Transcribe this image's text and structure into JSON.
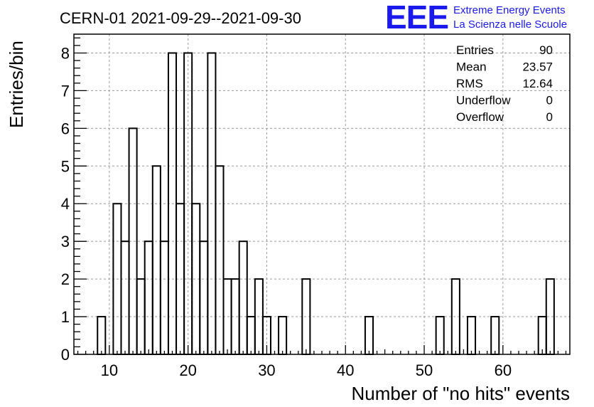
{
  "chart_data": {
    "type": "bar",
    "title": "CERN-01 2021-09-29--2021-09-30",
    "xlabel": "Number of \"no hits\" events",
    "ylabel": "Entries/bin",
    "xlim": [
      5.5,
      68.5
    ],
    "ylim": [
      0,
      8.5
    ],
    "xticks": [
      10,
      20,
      30,
      40,
      50,
      60
    ],
    "yticks": [
      0,
      1,
      2,
      3,
      4,
      5,
      6,
      7,
      8
    ],
    "grid": true,
    "histogram_bins": {
      "x": [
        9,
        11,
        12,
        13,
        14,
        15,
        16,
        17,
        18,
        19,
        20,
        21,
        22,
        23,
        24,
        25,
        26,
        27,
        28,
        29,
        30,
        32,
        35,
        43,
        52,
        54,
        56,
        59,
        65,
        66
      ],
      "counts": [
        1,
        4,
        3,
        6,
        2,
        3,
        5,
        3,
        8,
        4,
        8,
        4,
        3,
        8,
        5,
        2,
        2,
        3,
        1,
        2,
        1,
        1,
        2,
        1,
        1,
        2,
        1,
        1,
        1,
        2
      ]
    },
    "bin_width": 1,
    "stats_box": {
      "rows": [
        {
          "label": "Entries",
          "value": "90"
        },
        {
          "label": "Mean",
          "value": "23.57"
        },
        {
          "label": "RMS",
          "value": "12.64"
        },
        {
          "label": "Underflow",
          "value": "0"
        },
        {
          "label": "Overflow",
          "value": "0"
        }
      ]
    },
    "logo": {
      "mark": "EEE",
      "line1": "Extreme Energy Events",
      "line2": "La Scienza nelle Scuole",
      "color": "#1a1aee"
    }
  }
}
